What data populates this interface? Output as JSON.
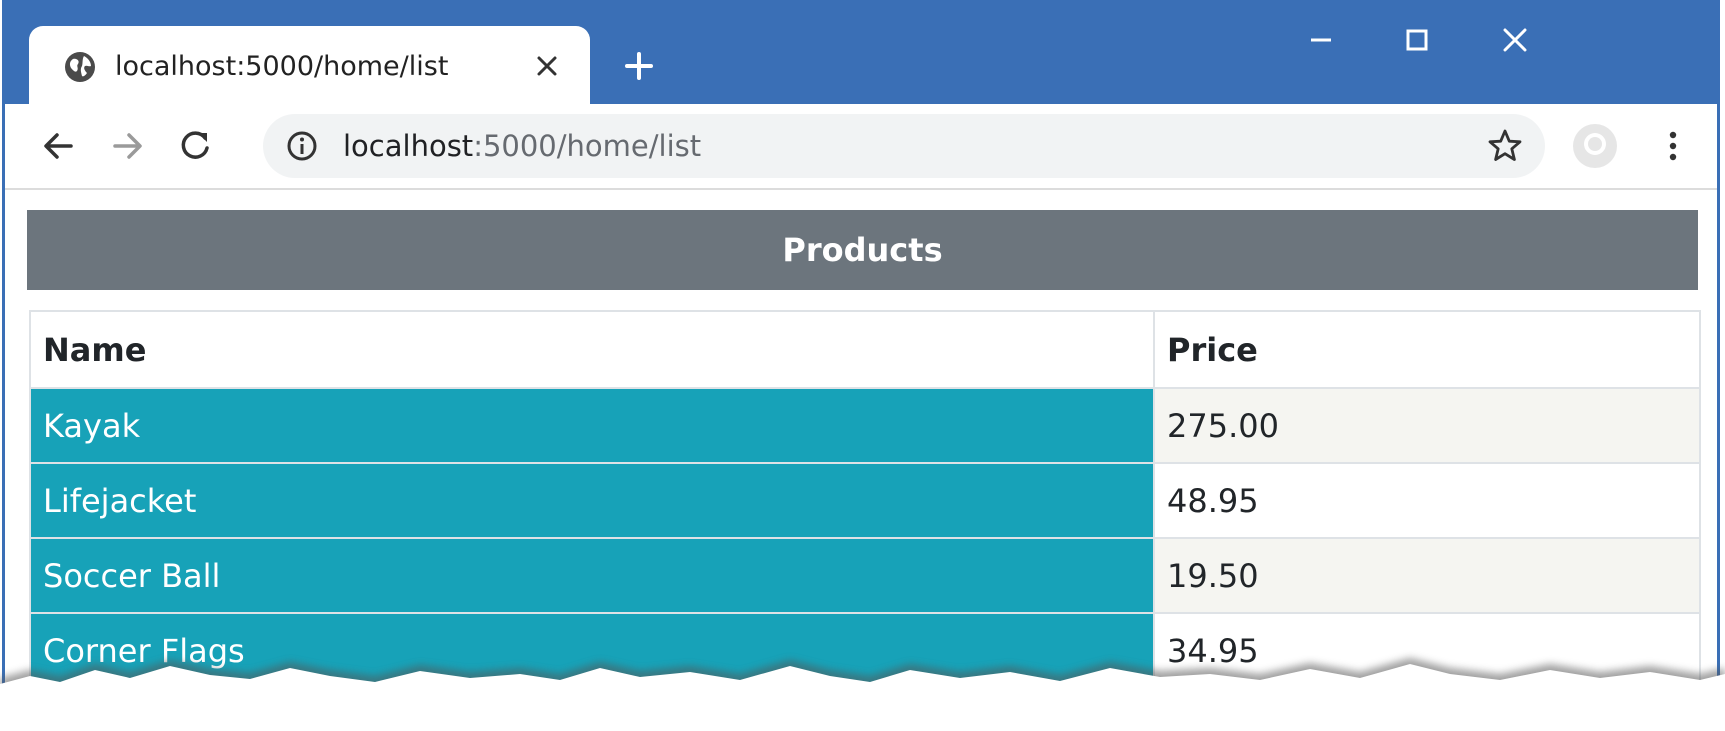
{
  "browser": {
    "tab": {
      "title": "localhost:5000/home/list",
      "globe_icon": "globe-icon",
      "close_icon": "close-icon"
    },
    "new_tab_icon": "plus-icon",
    "window_controls": [
      "minimize-icon",
      "maximize-icon",
      "close-window-icon"
    ],
    "nav": {
      "back_icon": "arrow-left-icon",
      "forward_icon": "arrow-right-icon",
      "reload_icon": "reload-icon"
    },
    "address_bar": {
      "host": "localhost",
      "rest": ":5000/home/list",
      "info_icon": "info-icon",
      "star_icon": "star-icon"
    },
    "profile_icon": "profile-icon",
    "menu_icon": "kebab-menu-icon"
  },
  "page": {
    "header": "Products",
    "table": {
      "columns": [
        "Name",
        "Price"
      ],
      "rows": [
        {
          "name": "Kayak",
          "price": "275.00"
        },
        {
          "name": "Lifejacket",
          "price": "48.95"
        },
        {
          "name": "Soccer Ball",
          "price": "19.50"
        },
        {
          "name": "Corner Flags",
          "price": "34.95"
        }
      ]
    }
  },
  "colors": {
    "titlebar": "#3a6fb6",
    "header_bg": "#6c757d",
    "name_cell_bg": "#17a2b8",
    "stripe_bg": "#f5f5f1"
  }
}
